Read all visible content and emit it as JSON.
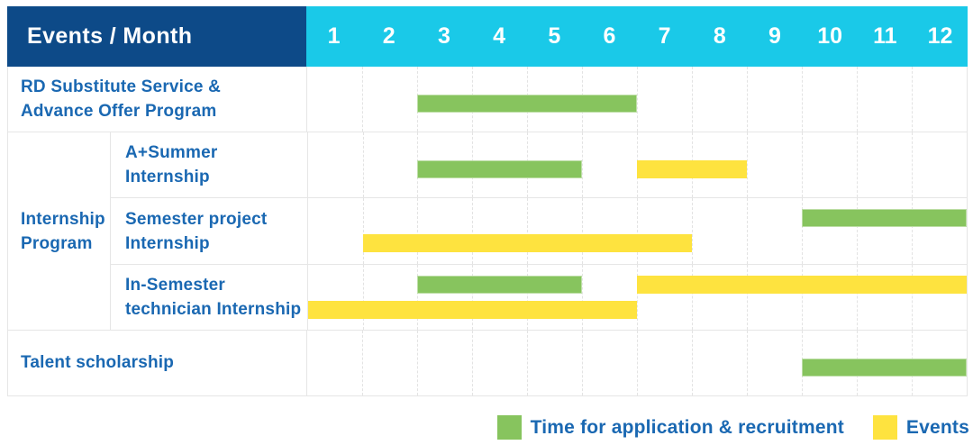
{
  "colors": {
    "navy": "#0d4a88",
    "cyan": "#1ac9e8",
    "green": "#87c45e",
    "yellow": "#fee33f",
    "label_blue": "#1a68b2"
  },
  "table": {
    "header": {
      "label": "Events / Month",
      "months": [
        "1",
        "2",
        "3",
        "4",
        "5",
        "6",
        "7",
        "8",
        "9",
        "10",
        "11",
        "12"
      ]
    },
    "group": {
      "label_lines": [
        "Internship",
        "Program"
      ],
      "row_start": 1,
      "row_end": 3
    },
    "rows": [
      {
        "label_lines": [
          "RD Substitute Service &",
          "Advance Offer Program"
        ],
        "indent": false,
        "bars": [
          {
            "type": "recruitment",
            "start_month": 3,
            "end_month": 6,
            "line": "single"
          }
        ]
      },
      {
        "label_lines": [
          "A+Summer",
          "Internship"
        ],
        "indent": true,
        "bars": [
          {
            "type": "recruitment",
            "start_month": 3,
            "end_month": 5,
            "line": "single"
          },
          {
            "type": "event",
            "start_month": 7,
            "end_month": 8,
            "line": "single"
          }
        ]
      },
      {
        "label_lines": [
          "Semester project",
          "Internship"
        ],
        "indent": true,
        "bars": [
          {
            "type": "recruitment",
            "start_month": 10,
            "end_month": 12,
            "line": "upper"
          },
          {
            "type": "event",
            "start_month": 2,
            "end_month": 7,
            "line": "lower"
          }
        ]
      },
      {
        "label_lines": [
          "In-Semester",
          "technician Internship"
        ],
        "indent": true,
        "bars": [
          {
            "type": "recruitment",
            "start_month": 3,
            "end_month": 5,
            "line": "upper"
          },
          {
            "type": "event",
            "start_month": 7,
            "end_month": 12,
            "line": "upper"
          },
          {
            "type": "event",
            "start_month": 1,
            "end_month": 6,
            "line": "lower"
          }
        ]
      },
      {
        "label_lines": [
          "Talent scholarship"
        ],
        "indent": false,
        "bars": [
          {
            "type": "recruitment",
            "start_month": 10,
            "end_month": 12,
            "line": "single"
          }
        ]
      }
    ]
  },
  "legend": {
    "items": [
      {
        "type": "recruitment",
        "color": "#87c45e",
        "label": "Time for application & recruitment"
      },
      {
        "type": "event",
        "color": "#fee33f",
        "label": "Events"
      }
    ]
  },
  "chart_data": {
    "type": "table",
    "subtype": "gantt",
    "title": "Events / Month",
    "x": [
      1,
      2,
      3,
      4,
      5,
      6,
      7,
      8,
      9,
      10,
      11,
      12
    ],
    "xlabel": "Month",
    "legend_position": "bottom-right",
    "grid": "dashed-vertical",
    "series": [
      {
        "name": "RD Substitute Service & Advance Offer Program",
        "group": null,
        "bars": [
          {
            "kind": "Time for application & recruitment",
            "months": [
              3,
              6
            ]
          }
        ]
      },
      {
        "name": "A+Summer Internship",
        "group": "Internship Program",
        "bars": [
          {
            "kind": "Time for application & recruitment",
            "months": [
              3,
              5
            ]
          },
          {
            "kind": "Events",
            "months": [
              7,
              8
            ]
          }
        ]
      },
      {
        "name": "Semester project Internship",
        "group": "Internship Program",
        "bars": [
          {
            "kind": "Time for application & recruitment",
            "months": [
              10,
              12
            ]
          },
          {
            "kind": "Events",
            "months": [
              2,
              7
            ]
          }
        ]
      },
      {
        "name": "In-Semester technician Internship",
        "group": "Internship Program",
        "bars": [
          {
            "kind": "Time for application & recruitment",
            "months": [
              3,
              5
            ]
          },
          {
            "kind": "Events",
            "months": [
              7,
              12
            ]
          },
          {
            "kind": "Events",
            "months": [
              1,
              6
            ]
          }
        ]
      },
      {
        "name": "Talent scholarship",
        "group": null,
        "bars": [
          {
            "kind": "Time for application & recruitment",
            "months": [
              10,
              12
            ]
          }
        ]
      }
    ]
  }
}
